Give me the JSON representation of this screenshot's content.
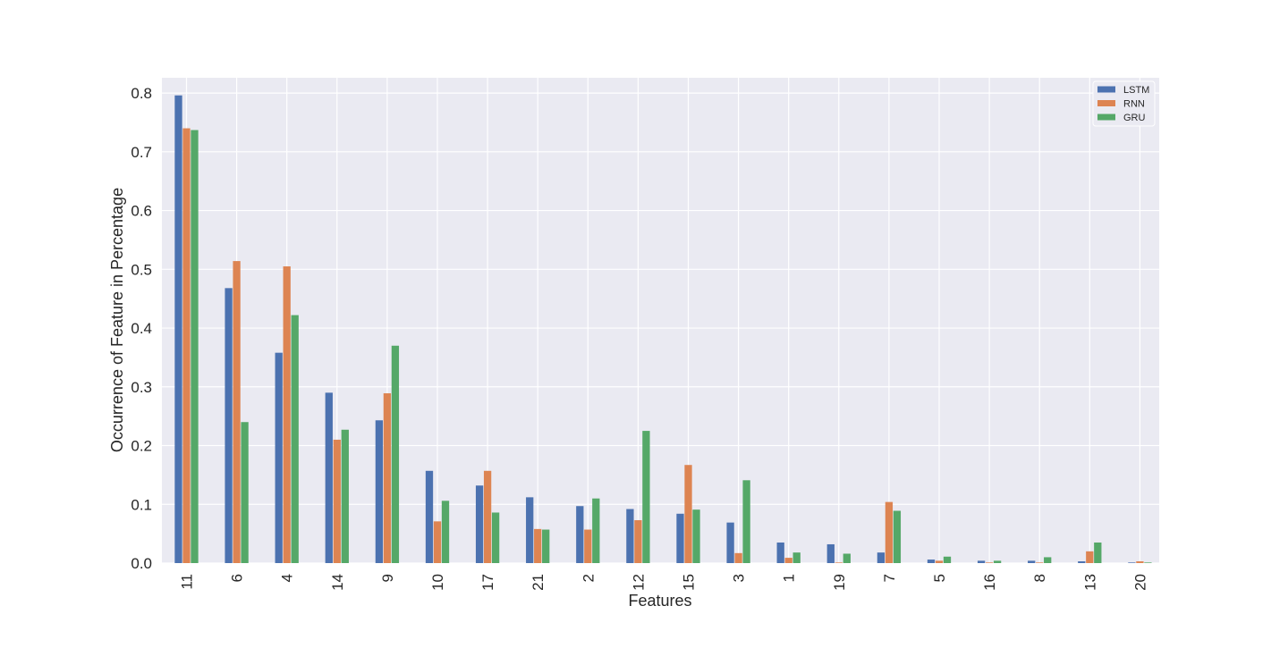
{
  "chart_data": {
    "type": "bar",
    "title": "",
    "xlabel": "Features",
    "ylabel": "Occurrence of Feature in Percentage",
    "ylim": [
      0,
      0.8
    ],
    "yticks": [
      "0.0",
      "0.1",
      "0.2",
      "0.3",
      "0.4",
      "0.5",
      "0.6",
      "0.7",
      "0.8"
    ],
    "grid": true,
    "legend_position": "top-right",
    "categories": [
      "11",
      "6",
      "4",
      "14",
      "9",
      "10",
      "17",
      "21",
      "2",
      "12",
      "15",
      "3",
      "1",
      "19",
      "7",
      "5",
      "16",
      "8",
      "13",
      "20"
    ],
    "series": [
      {
        "name": "LSTM",
        "color": "#4c72b0",
        "values": [
          0.796,
          0.468,
          0.358,
          0.29,
          0.243,
          0.157,
          0.132,
          0.112,
          0.097,
          0.092,
          0.084,
          0.069,
          0.035,
          0.032,
          0.018,
          0.006,
          0.004,
          0.004,
          0.003,
          0.001
        ]
      },
      {
        "name": "RNN",
        "color": "#dd8452",
        "values": [
          0.74,
          0.514,
          0.505,
          0.21,
          0.289,
          0.071,
          0.157,
          0.058,
          0.057,
          0.073,
          0.167,
          0.017,
          0.009,
          0.001,
          0.104,
          0.004,
          0.001,
          0.001,
          0.02,
          0.003
        ]
      },
      {
        "name": "GRU",
        "color": "#55a868",
        "values": [
          0.737,
          0.24,
          0.422,
          0.227,
          0.37,
          0.106,
          0.086,
          0.057,
          0.11,
          0.225,
          0.091,
          0.141,
          0.018,
          0.016,
          0.089,
          0.011,
          0.004,
          0.01,
          0.035,
          0.001
        ]
      }
    ],
    "colors": {
      "plot_background": "#eaeaf2",
      "grid": "#ffffff",
      "legend_background": "#eaeaf2",
      "legend_border": "#ffffff"
    }
  }
}
